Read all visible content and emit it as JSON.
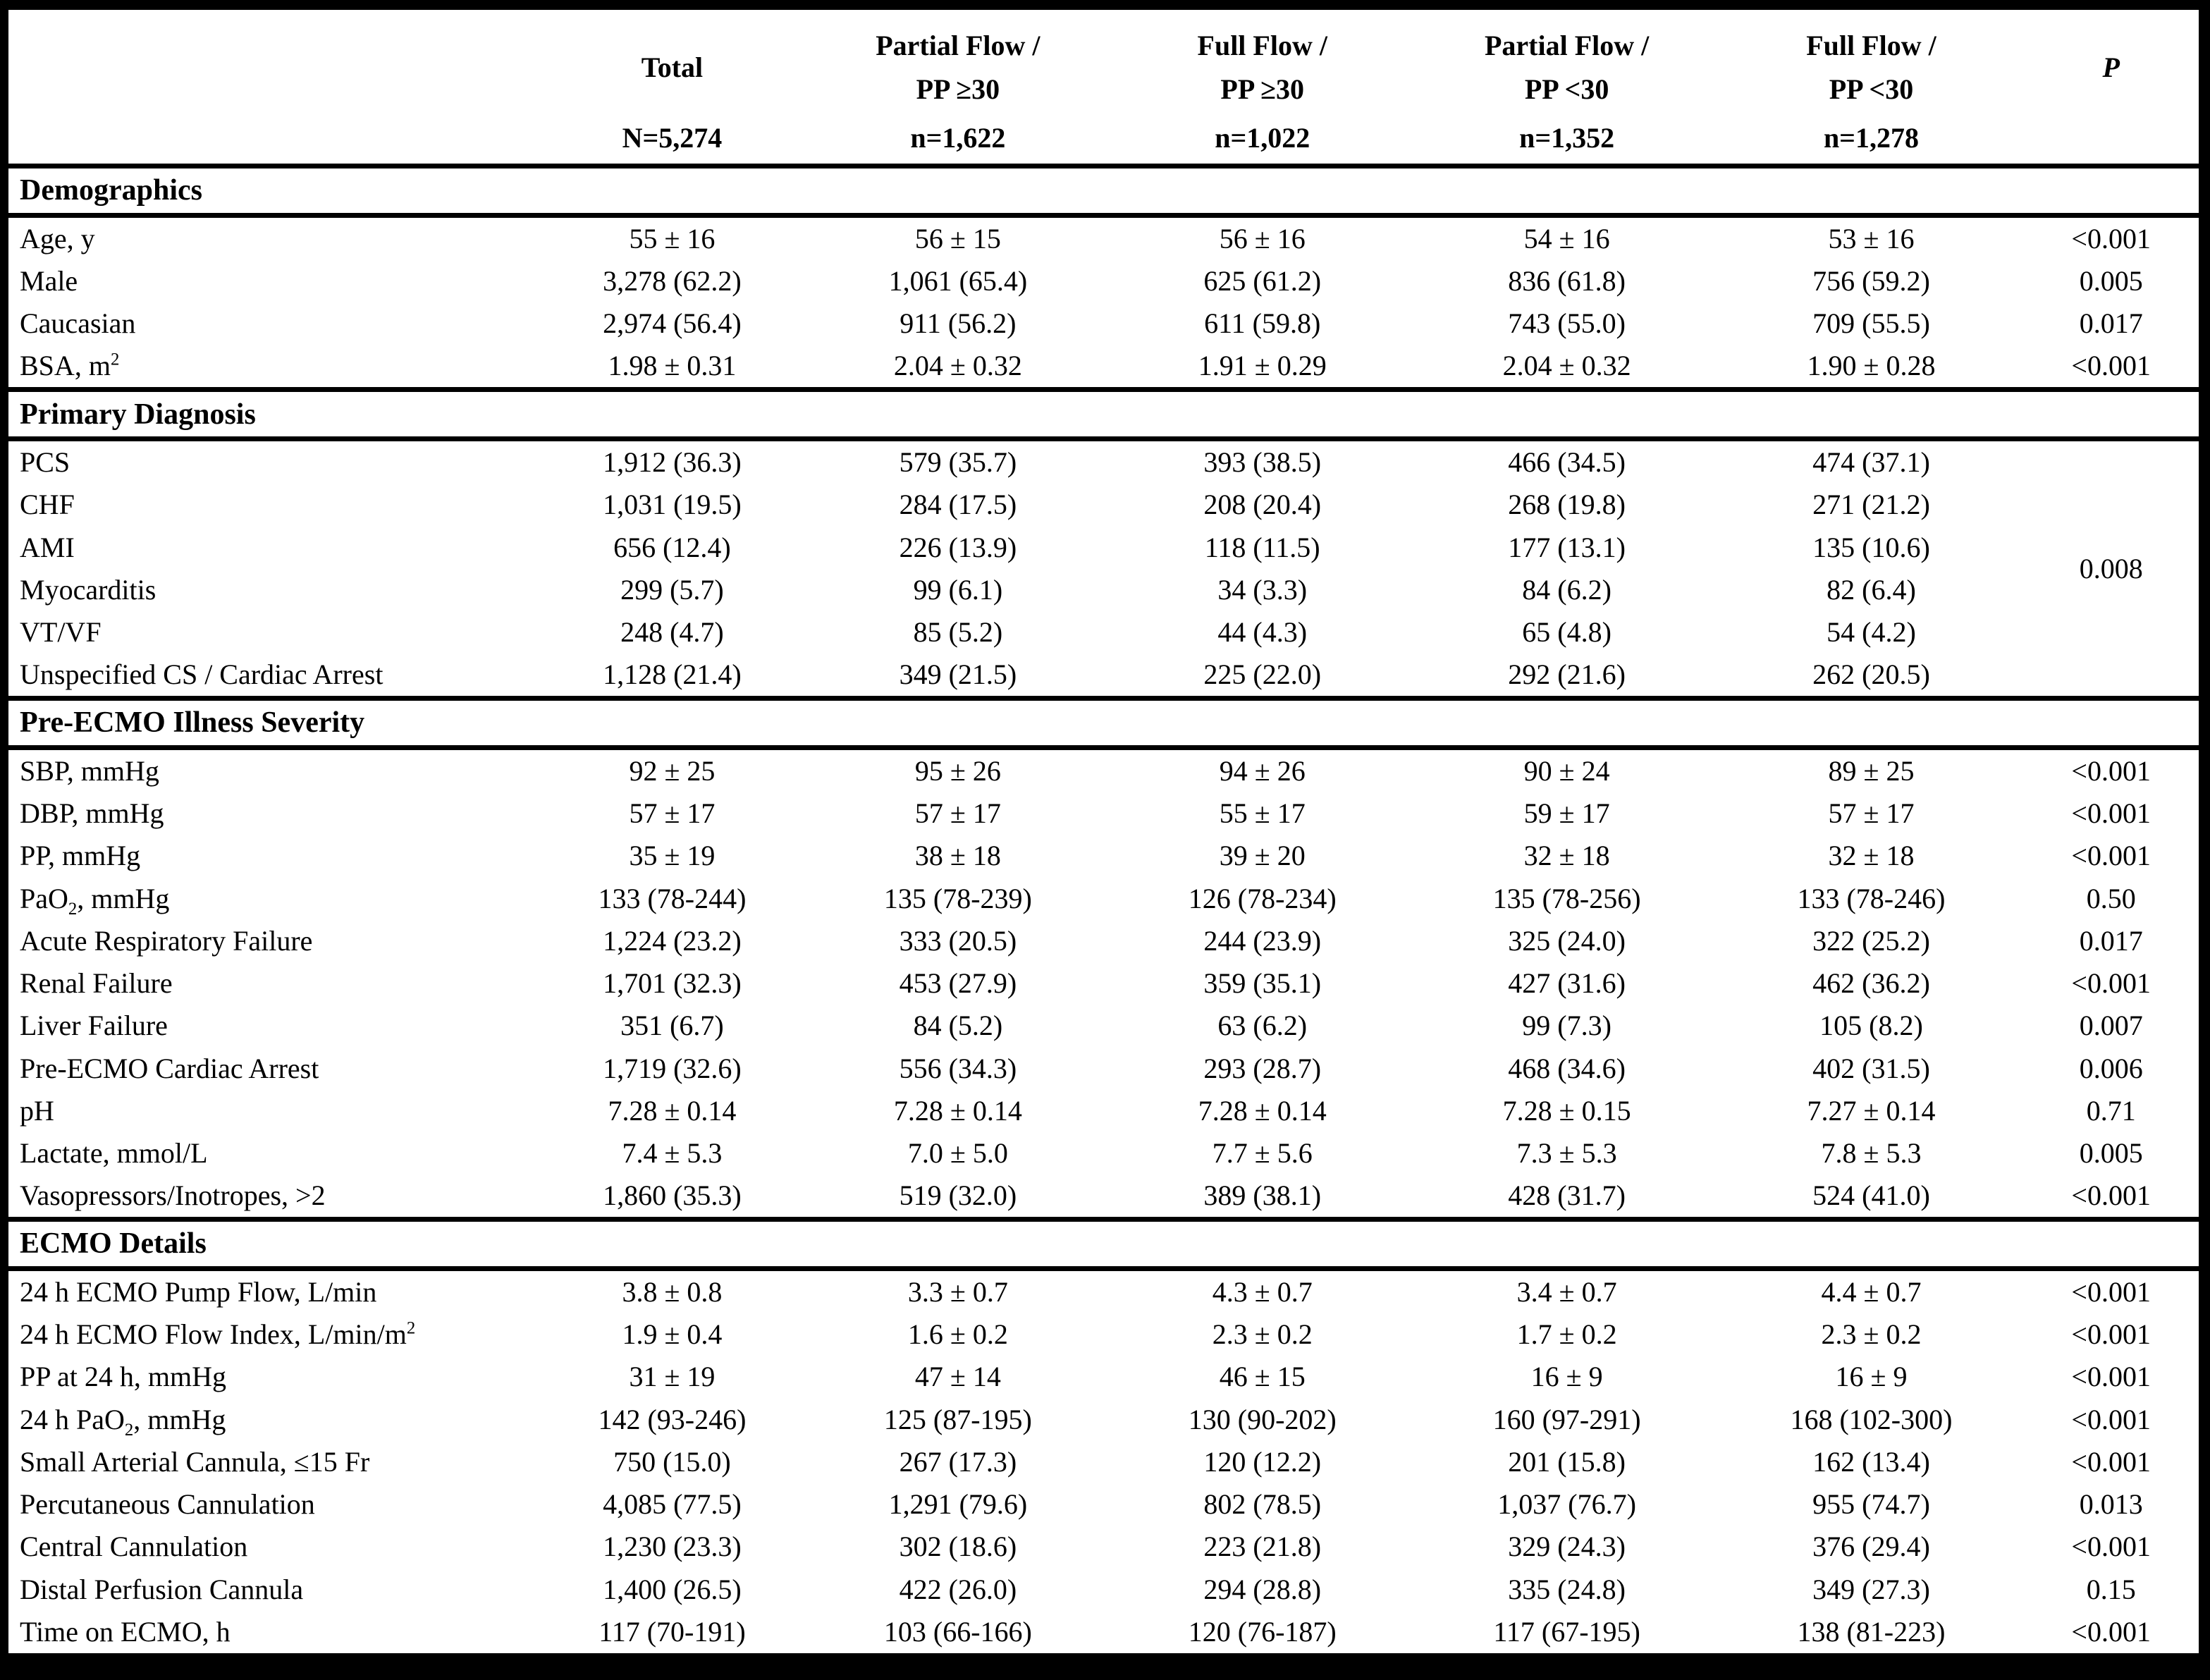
{
  "table": {
    "columns": [
      {
        "line1": "",
        "line2": "",
        "n": ""
      },
      {
        "line1": "Total",
        "line2": "",
        "n": "N=5,274"
      },
      {
        "line1": "Partial Flow /",
        "line2": "PP ≥30",
        "n": "n=1,622"
      },
      {
        "line1": "Full Flow /",
        "line2": "PP ≥30",
        "n": "n=1,022"
      },
      {
        "line1": "Partial Flow /",
        "line2": "PP <30",
        "n": "n=1,352"
      },
      {
        "line1": "Full Flow /",
        "line2": "PP <30",
        "n": "n=1,278"
      },
      {
        "line1": "P",
        "line2": "",
        "n": ""
      }
    ],
    "sections": [
      {
        "title": "Demographics",
        "rows": [
          {
            "label": {
              "pre": "Age, y"
            },
            "values": [
              "55 ± 16",
              "56 ± 15",
              "56 ± 16",
              "54 ± 16",
              "53 ± 16"
            ],
            "p": "<0.001"
          },
          {
            "label": {
              "pre": "Male"
            },
            "values": [
              "3,278 (62.2)",
              "1,061 (65.4)",
              "625 (61.2)",
              "836 (61.8)",
              "756 (59.2)"
            ],
            "p": "0.005"
          },
          {
            "label": {
              "pre": "Caucasian"
            },
            "values": [
              "2,974 (56.4)",
              "911 (56.2)",
              "611 (59.8)",
              "743 (55.0)",
              "709 (55.5)"
            ],
            "p": "0.017"
          },
          {
            "label": {
              "pre": "BSA, m",
              "sup": "2"
            },
            "values": [
              "1.98 ± 0.31",
              "2.04 ± 0.32",
              "1.91 ± 0.29",
              "2.04 ± 0.32",
              "1.90 ± 0.28"
            ],
            "p": "<0.001"
          }
        ]
      },
      {
        "title": "Primary Diagnosis",
        "p_merged": "0.008",
        "rows": [
          {
            "label": {
              "pre": "PCS"
            },
            "values": [
              "1,912 (36.3)",
              "579 (35.7)",
              "393 (38.5)",
              "466 (34.5)",
              "474 (37.1)"
            ]
          },
          {
            "label": {
              "pre": "CHF"
            },
            "values": [
              "1,031 (19.5)",
              "284 (17.5)",
              "208 (20.4)",
              "268 (19.8)",
              "271 (21.2)"
            ]
          },
          {
            "label": {
              "pre": "AMI"
            },
            "values": [
              "656 (12.4)",
              "226 (13.9)",
              "118 (11.5)",
              "177 (13.1)",
              "135 (10.6)"
            ]
          },
          {
            "label": {
              "pre": "Myocarditis"
            },
            "values": [
              "299 (5.7)",
              "99 (6.1)",
              "34 (3.3)",
              "84 (6.2)",
              "82 (6.4)"
            ]
          },
          {
            "label": {
              "pre": "VT/VF"
            },
            "values": [
              "248 (4.7)",
              "85 (5.2)",
              "44 (4.3)",
              "65 (4.8)",
              "54 (4.2)"
            ]
          },
          {
            "label": {
              "pre": "Unspecified CS / Cardiac Arrest"
            },
            "values": [
              "1,128 (21.4)",
              "349 (21.5)",
              "225 (22.0)",
              "292 (21.6)",
              "262 (20.5)"
            ]
          }
        ]
      },
      {
        "title": "Pre-ECMO Illness Severity",
        "rows": [
          {
            "label": {
              "pre": "SBP, mmHg"
            },
            "values": [
              "92 ± 25",
              "95 ± 26",
              "94 ± 26",
              "90 ± 24",
              "89 ± 25"
            ],
            "p": "<0.001"
          },
          {
            "label": {
              "pre": "DBP, mmHg"
            },
            "values": [
              "57 ± 17",
              "57 ± 17",
              "55 ± 17",
              "59 ± 17",
              "57 ± 17"
            ],
            "p": "<0.001"
          },
          {
            "label": {
              "pre": "PP, mmHg"
            },
            "values": [
              "35 ± 19",
              "38 ± 18",
              "39 ± 20",
              "32 ± 18",
              "32 ± 18"
            ],
            "p": "<0.001"
          },
          {
            "label": {
              "pre": "PaO",
              "sub": "2",
              "post": ", mmHg"
            },
            "values": [
              "133 (78-244)",
              "135 (78-239)",
              "126 (78-234)",
              "135 (78-256)",
              "133 (78-246)"
            ],
            "p": "0.50"
          },
          {
            "label": {
              "pre": "Acute Respiratory Failure"
            },
            "values": [
              "1,224 (23.2)",
              "333 (20.5)",
              "244 (23.9)",
              "325 (24.0)",
              "322 (25.2)"
            ],
            "p": "0.017"
          },
          {
            "label": {
              "pre": "Renal Failure"
            },
            "values": [
              "1,701 (32.3)",
              "453 (27.9)",
              "359 (35.1)",
              "427 (31.6)",
              "462 (36.2)"
            ],
            "p": "<0.001"
          },
          {
            "label": {
              "pre": "Liver Failure"
            },
            "values": [
              "351 (6.7)",
              "84 (5.2)",
              "63 (6.2)",
              "99 (7.3)",
              "105 (8.2)"
            ],
            "p": "0.007"
          },
          {
            "label": {
              "pre": "Pre-ECMO Cardiac Arrest"
            },
            "values": [
              "1,719 (32.6)",
              "556 (34.3)",
              "293 (28.7)",
              "468 (34.6)",
              "402 (31.5)"
            ],
            "p": "0.006"
          },
          {
            "label": {
              "pre": "pH"
            },
            "values": [
              "7.28 ± 0.14",
              "7.28 ± 0.14",
              "7.28 ± 0.14",
              "7.28 ± 0.15",
              "7.27 ± 0.14"
            ],
            "p": "0.71"
          },
          {
            "label": {
              "pre": "Lactate, mmol/L"
            },
            "values": [
              "7.4 ± 5.3",
              "7.0 ± 5.0",
              "7.7 ± 5.6",
              "7.3 ± 5.3",
              "7.8 ± 5.3"
            ],
            "p": "0.005"
          },
          {
            "label": {
              "pre": "Vasopressors/Inotropes, >2"
            },
            "values": [
              "1,860 (35.3)",
              "519 (32.0)",
              "389 (38.1)",
              "428 (31.7)",
              "524 (41.0)"
            ],
            "p": "<0.001"
          }
        ]
      },
      {
        "title": "ECMO Details",
        "rows": [
          {
            "label": {
              "pre": "24 h ECMO Pump Flow, L/min"
            },
            "values": [
              "3.8 ± 0.8",
              "3.3 ± 0.7",
              "4.3 ± 0.7",
              "3.4 ± 0.7",
              "4.4 ± 0.7"
            ],
            "p": "<0.001"
          },
          {
            "label": {
              "pre": "24 h ECMO Flow Index, L/min/m",
              "sup": "2"
            },
            "values": [
              "1.9 ± 0.4",
              "1.6 ± 0.2",
              "2.3 ± 0.2",
              "1.7 ± 0.2",
              "2.3 ± 0.2"
            ],
            "p": "<0.001"
          },
          {
            "label": {
              "pre": "PP at 24 h, mmHg"
            },
            "values": [
              "31 ± 19",
              "47 ± 14",
              "46 ± 15",
              "16 ± 9",
              "16 ± 9"
            ],
            "p": "<0.001"
          },
          {
            "label": {
              "pre": "24 h PaO",
              "sub": "2",
              "post": ", mmHg"
            },
            "values": [
              "142 (93-246)",
              "125 (87-195)",
              "130 (90-202)",
              "160 (97-291)",
              "168 (102-300)"
            ],
            "p": "<0.001"
          },
          {
            "label": {
              "pre": "Small Arterial Cannula, ≤15 Fr"
            },
            "values": [
              "750 (15.0)",
              "267 (17.3)",
              "120 (12.2)",
              "201 (15.8)",
              "162 (13.4)"
            ],
            "p": "<0.001"
          },
          {
            "label": {
              "pre": "Percutaneous Cannulation"
            },
            "values": [
              "4,085 (77.5)",
              "1,291 (79.6)",
              "802 (78.5)",
              "1,037 (76.7)",
              "955 (74.7)"
            ],
            "p": "0.013"
          },
          {
            "label": {
              "pre": "Central Cannulation"
            },
            "values": [
              "1,230 (23.3)",
              "302 (18.6)",
              "223 (21.8)",
              "329 (24.3)",
              "376 (29.4)"
            ],
            "p": "<0.001"
          },
          {
            "label": {
              "pre": "Distal Perfusion Cannula"
            },
            "values": [
              "1,400 (26.5)",
              "422 (26.0)",
              "294 (28.8)",
              "335 (24.8)",
              "349 (27.3)"
            ],
            "p": "0.15"
          },
          {
            "label": {
              "pre": "Time on ECMO, h"
            },
            "values": [
              "117 (70-191)",
              "103 (66-166)",
              "120 (76-187)",
              "117 (67-195)",
              "138 (81-223)"
            ],
            "p": "<0.001"
          }
        ]
      }
    ]
  }
}
